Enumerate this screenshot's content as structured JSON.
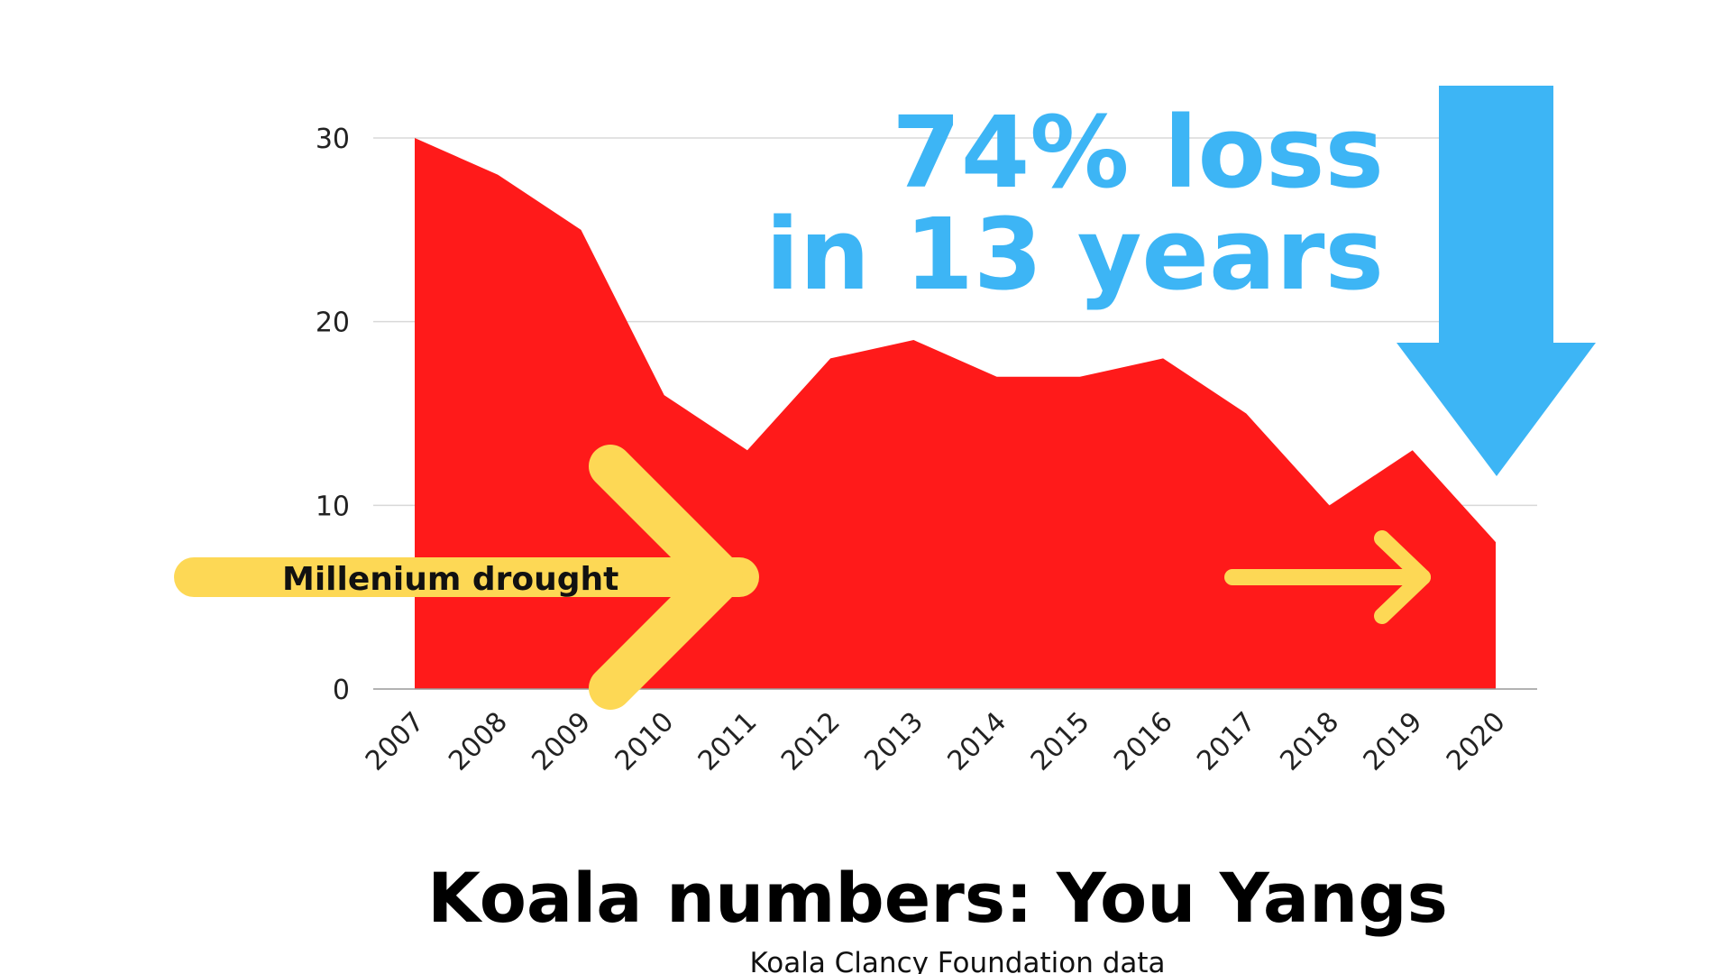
{
  "chart_data": {
    "type": "area",
    "title": "Koala numbers: You Yangs",
    "subtitle": "Koala Clancy Foundation data",
    "x": [
      "2007",
      "2008",
      "2009",
      "2010",
      "2011",
      "2012",
      "2013",
      "2014",
      "2015",
      "2016",
      "2017",
      "2018",
      "2019",
      "2020"
    ],
    "series": [
      {
        "values": [
          30,
          28,
          25,
          16,
          13,
          18,
          19,
          17,
          17,
          18,
          15,
          10,
          13,
          8
        ]
      }
    ],
    "ylim": [
      0,
      30
    ],
    "yticks": [
      "0",
      "10",
      "20",
      "30"
    ],
    "grid": true,
    "annotations": {
      "headline_line1": "74% loss",
      "headline_line2": "in 13 years",
      "drought_label": "Millenium drought"
    }
  },
  "colors": {
    "area": "#ff1a1a",
    "headline": "#3db5f5",
    "down_arrow": "#3db5f5",
    "drought_arrow": "#fdd855",
    "grid": "#d9d9d9",
    "axis": "#999999"
  }
}
